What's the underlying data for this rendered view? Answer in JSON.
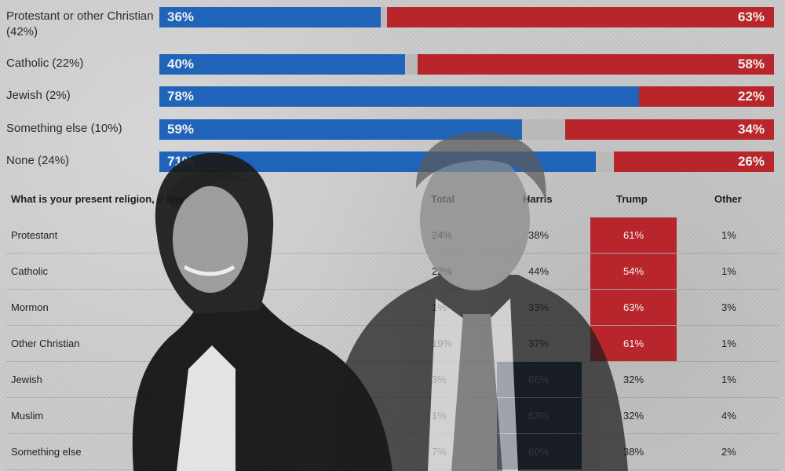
{
  "colors": {
    "harris": "#1f64b8",
    "trump": "#b8262b",
    "other": "#b9b9b9",
    "table_harris_highlight": "#0c1c33",
    "table_trump_highlight": "#b8262b"
  },
  "chart_data": [
    {
      "type": "bar",
      "stacked": true,
      "orientation": "horizontal",
      "categories": [
        "Protestant or other Christian (42%)",
        "Catholic (22%)",
        "Jewish (2%)",
        "Something else (10%)",
        "None (24%)"
      ],
      "series": [
        {
          "values": [
            36,
            40,
            78,
            59,
            71
          ],
          "labels": [
            "36%",
            "40%",
            "78%",
            "59%",
            "71%"
          ],
          "color": "#1f64b8"
        },
        {
          "values": [
            1,
            2,
            0,
            7,
            3
          ],
          "color": "#b9b9b9"
        },
        {
          "values": [
            63,
            58,
            22,
            34,
            26
          ],
          "labels": [
            "63%",
            "58%",
            "22%",
            "34%",
            "26%"
          ],
          "color": "#b8262b"
        }
      ],
      "xlim": [
        0,
        100
      ]
    },
    {
      "type": "table",
      "title": "What is your present religion, if any?",
      "columns": [
        "Total",
        "Harris",
        "Trump",
        "Other"
      ],
      "rows": [
        {
          "name": "Protestant",
          "total": "24%",
          "harris": "38%",
          "trump": "61%",
          "other": "1%"
        },
        {
          "name": "Catholic",
          "total": "22%",
          "harris": "44%",
          "trump": "54%",
          "other": "1%"
        },
        {
          "name": "Mormon",
          "total": "1%",
          "harris": "33%",
          "trump": "63%",
          "other": "3%"
        },
        {
          "name": "Other Christian",
          "total": "19%",
          "harris": "37%",
          "trump": "61%",
          "other": "1%"
        },
        {
          "name": "Jewish",
          "total": "3%",
          "harris": "66%",
          "trump": "32%",
          "other": "1%"
        },
        {
          "name": "Muslim",
          "total": "1%",
          "harris": "63%",
          "trump": "32%",
          "other": "4%"
        },
        {
          "name": "Something else",
          "total": "7%",
          "harris": "60%",
          "trump": "38%",
          "other": "2%"
        }
      ],
      "highlight_trump_rows": [
        0,
        1,
        2,
        3
      ],
      "highlight_harris_rows": [
        4,
        5,
        6
      ]
    }
  ]
}
